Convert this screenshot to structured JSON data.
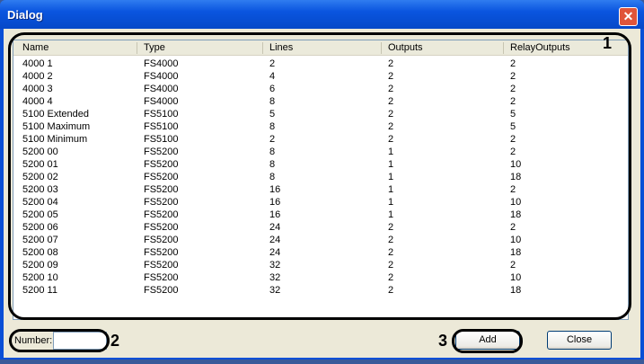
{
  "window": {
    "title": "Dialog",
    "close_icon": "close-x-icon"
  },
  "table": {
    "columns": [
      "Name",
      "Type",
      "Lines",
      "Outputs",
      "RelayOutputs"
    ],
    "rows": [
      [
        "4000 1",
        "FS4000",
        "2",
        "2",
        "2"
      ],
      [
        "4000 2",
        "FS4000",
        "4",
        "2",
        "2"
      ],
      [
        "4000 3",
        "FS4000",
        "6",
        "2",
        "2"
      ],
      [
        "4000 4",
        "FS4000",
        "8",
        "2",
        "2"
      ],
      [
        "5100 Extended",
        "FS5100",
        "5",
        "2",
        "5"
      ],
      [
        "5100 Maximum",
        "FS5100",
        "8",
        "2",
        "5"
      ],
      [
        "5100 Minimum",
        "FS5100",
        "2",
        "2",
        "2"
      ],
      [
        "5200 00",
        "FS5200",
        "8",
        "1",
        "2"
      ],
      [
        "5200 01",
        "FS5200",
        "8",
        "1",
        "10"
      ],
      [
        "5200 02",
        "FS5200",
        "8",
        "1",
        "18"
      ],
      [
        "5200 03",
        "FS5200",
        "16",
        "1",
        "2"
      ],
      [
        "5200 04",
        "FS5200",
        "16",
        "1",
        "10"
      ],
      [
        "5200 05",
        "FS5200",
        "16",
        "1",
        "18"
      ],
      [
        "5200 06",
        "FS5200",
        "24",
        "2",
        "2"
      ],
      [
        "5200 07",
        "FS5200",
        "24",
        "2",
        "10"
      ],
      [
        "5200 08",
        "FS5200",
        "24",
        "2",
        "18"
      ],
      [
        "5200 09",
        "FS5200",
        "32",
        "2",
        "2"
      ],
      [
        "5200 10",
        "FS5200",
        "32",
        "2",
        "10"
      ],
      [
        "5200 11",
        "FS5200",
        "32",
        "2",
        "18"
      ]
    ]
  },
  "footer": {
    "number_label": "Number:",
    "number_value": "",
    "add_label": "Add",
    "close_label": "Close"
  },
  "annotations": [
    "1",
    "2",
    "3"
  ]
}
